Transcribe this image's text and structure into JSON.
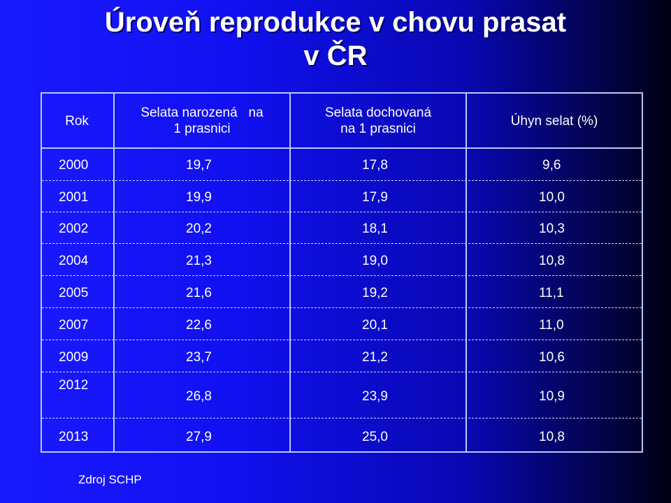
{
  "title_line1": "Úroveň reprodukce v chovu prasat",
  "title_line2": "v ČR",
  "headers": {
    "rok": "Rok",
    "narozena_line1": "Selata narozená   na",
    "narozena_line2": "1 prasnici",
    "dochovana_line1": "Selata dochovaná",
    "dochovana_line2": "na 1 prasnici",
    "uhyn": "Úhyn selat (%)"
  },
  "rows": [
    {
      "year": "2000",
      "born": "19,7",
      "reared": "17,8",
      "loss": "9,6"
    },
    {
      "year": "2001",
      "born": "19,9",
      "reared": "17,9",
      "loss": "10,0"
    },
    {
      "year": "2002",
      "born": "20,2",
      "reared": "18,1",
      "loss": "10,3"
    },
    {
      "year": "2004",
      "born": "21,3",
      "reared": "19,0",
      "loss": "10,8"
    },
    {
      "year": "2005",
      "born": "21,6",
      "reared": "19,2",
      "loss": "11,1"
    },
    {
      "year": "2007",
      "born": "22,6",
      "reared": "20,1",
      "loss": "11,0"
    },
    {
      "year": "2009",
      "born": "23,7",
      "reared": "21,2",
      "loss": "10,6"
    },
    {
      "year": "2012",
      "born": "26,8",
      "reared": "23,9",
      "loss": "10,9"
    },
    {
      "year": "2013",
      "born": "27,9",
      "reared": "25,0",
      "loss": "10,8"
    }
  ],
  "source": "Zdroj SCHP",
  "colors": {
    "background_left": "#1a1aff",
    "background_right": "#000014",
    "grid": "#b8c8ff",
    "text": "#ffffff"
  }
}
